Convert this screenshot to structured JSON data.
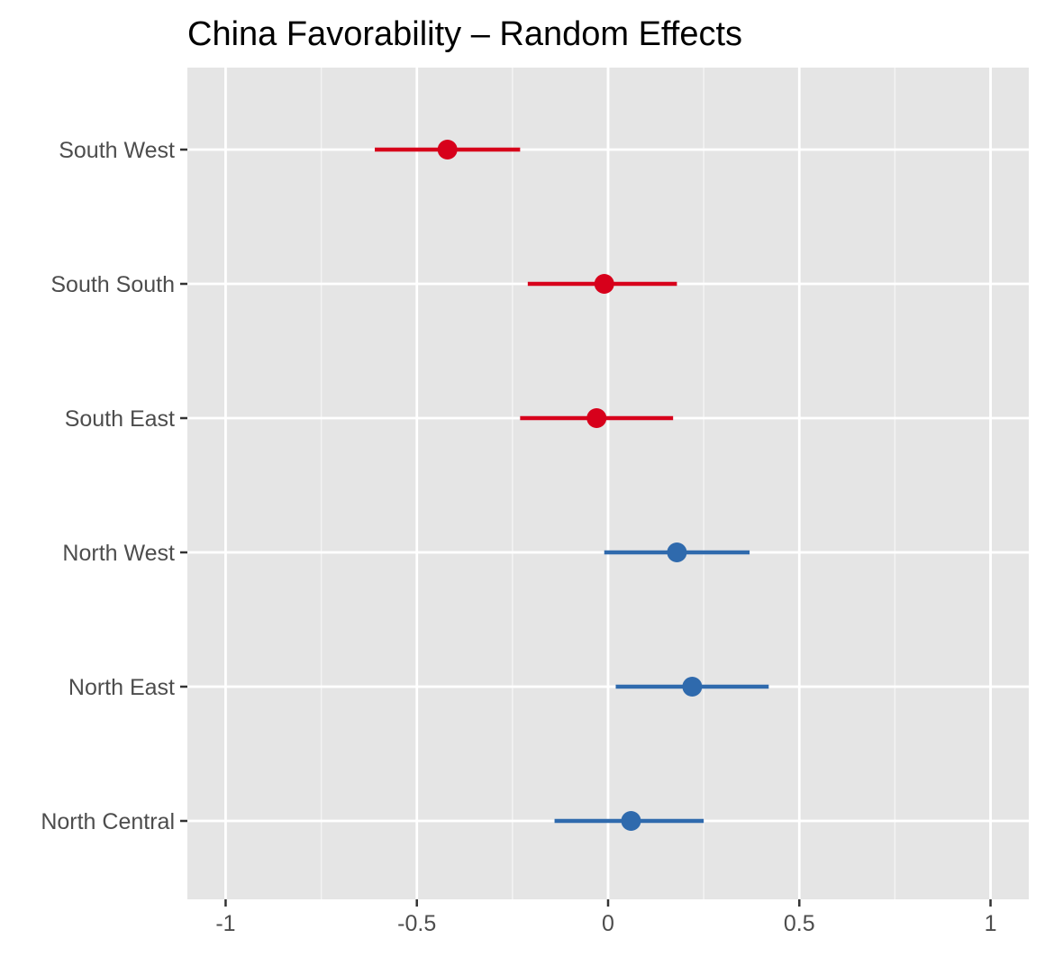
{
  "chart_data": {
    "type": "scatter",
    "title": "China Favorability – Random Effects",
    "xlabel": "",
    "ylabel": "",
    "xlim": [
      -1.1,
      1.1
    ],
    "x_ticks": [
      -1,
      -0.5,
      0,
      0.5,
      1
    ],
    "x_tick_labels": [
      "-1",
      "-0.5",
      "0",
      "0.5",
      "1"
    ],
    "grid": true,
    "legend": "none",
    "categories": [
      "South West",
      "South South",
      "South East",
      "North West",
      "North East",
      "North Central"
    ],
    "points": [
      {
        "label": "South West",
        "estimate": -0.42,
        "lower": -0.61,
        "upper": -0.23,
        "color": "#d7001b"
      },
      {
        "label": "South South",
        "estimate": -0.01,
        "lower": -0.21,
        "upper": 0.18,
        "color": "#d7001b"
      },
      {
        "label": "South East",
        "estimate": -0.03,
        "lower": -0.23,
        "upper": 0.17,
        "color": "#d7001b"
      },
      {
        "label": "North West",
        "estimate": 0.18,
        "lower": -0.01,
        "upper": 0.37,
        "color": "#2f6aad"
      },
      {
        "label": "North East",
        "estimate": 0.22,
        "lower": 0.02,
        "upper": 0.42,
        "color": "#2f6aad"
      },
      {
        "label": "North Central",
        "estimate": 0.06,
        "lower": -0.14,
        "upper": 0.25,
        "color": "#2f6aad"
      }
    ]
  }
}
